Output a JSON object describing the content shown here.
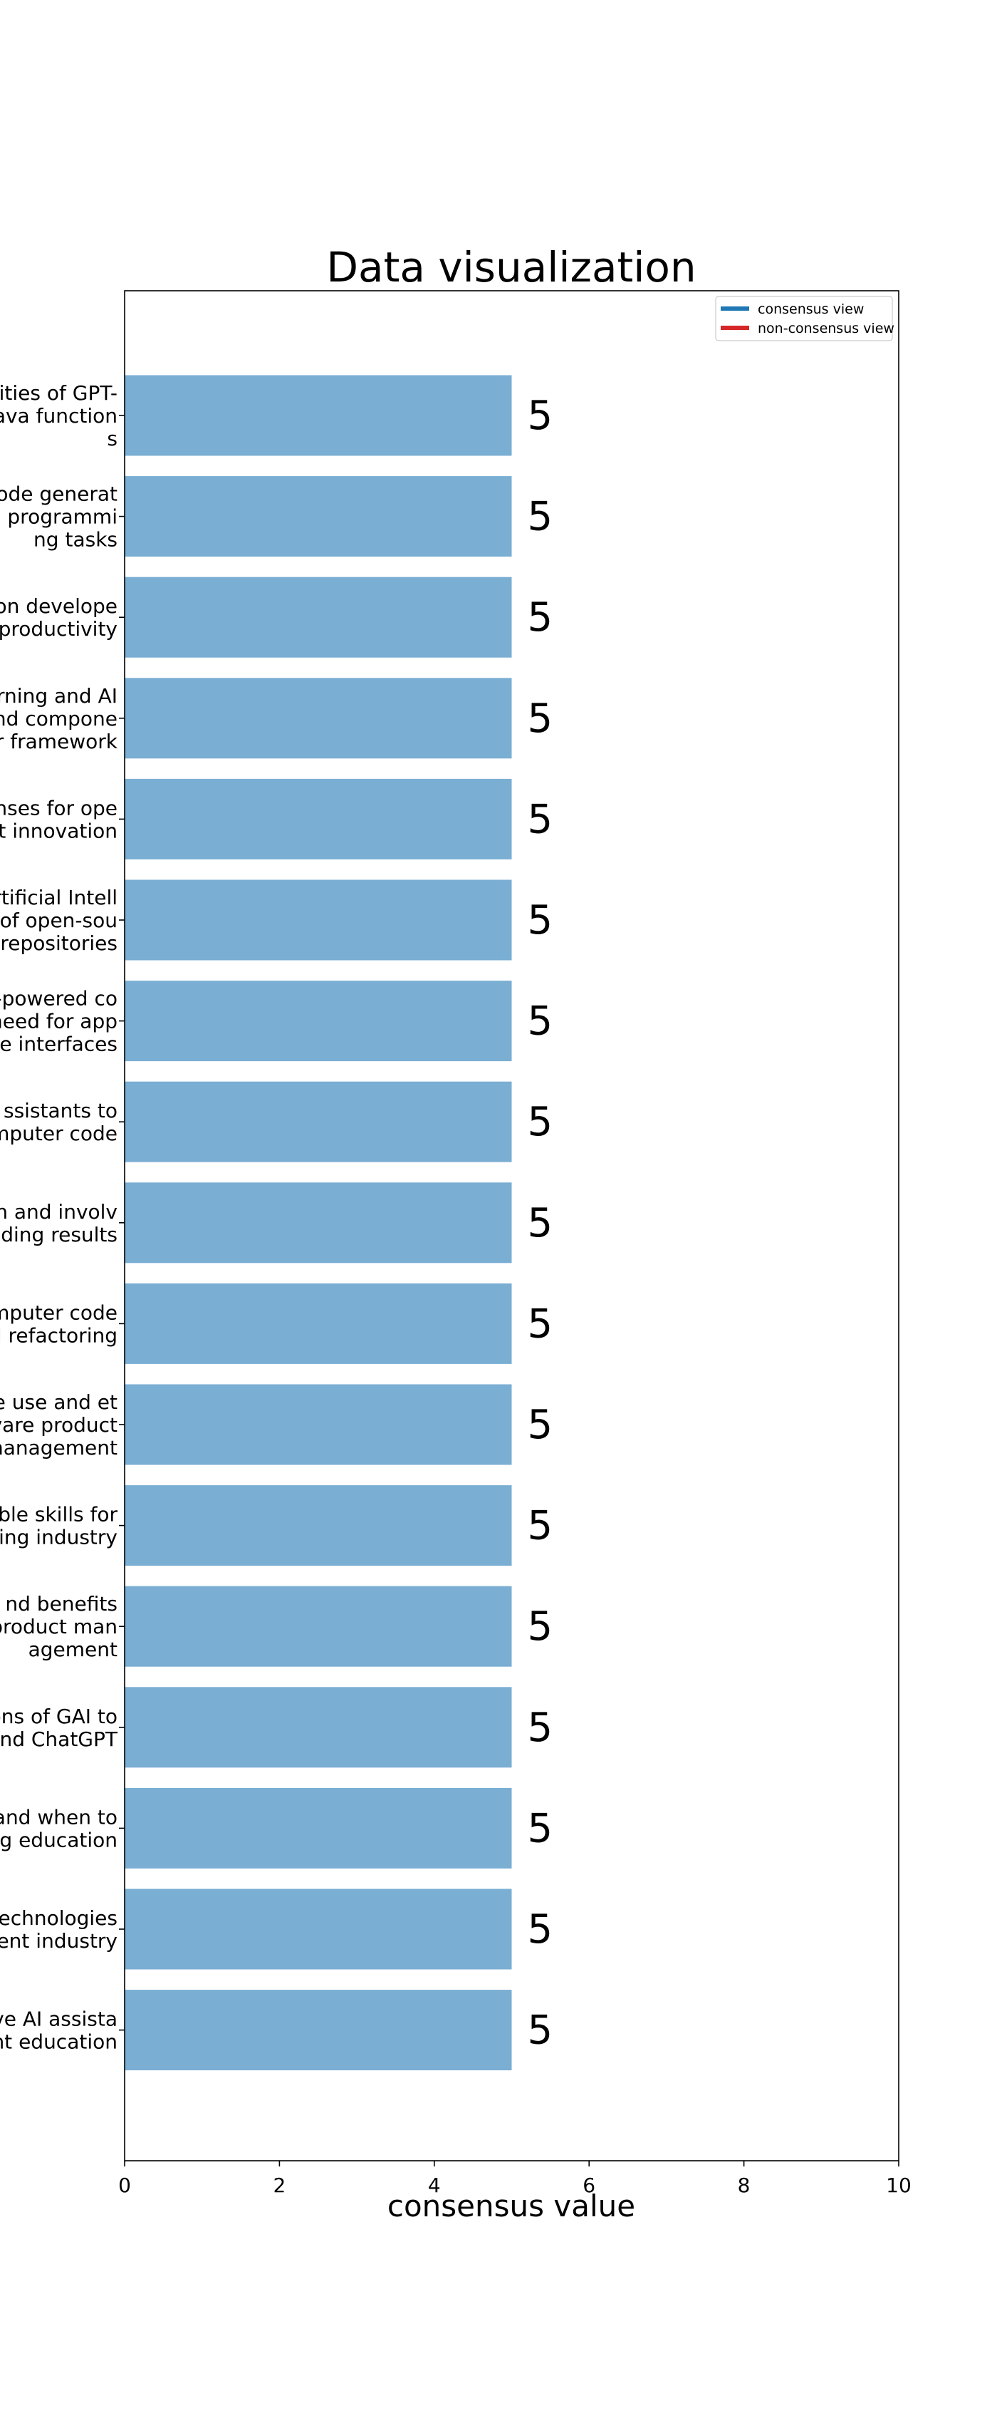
{
  "chart_data": {
    "type": "bar",
    "orientation": "horizontal",
    "title": "Data visualization",
    "xlabel": "consensus value",
    "ylabel": "",
    "xlim": [
      0,
      10
    ],
    "xticks": [
      "0",
      "2",
      "4",
      "6",
      "8",
      "10"
    ],
    "grid": false,
    "bar_color": "#7aaed3",
    "legend": {
      "placement": "top-right",
      "entries": [
        {
          "label": "consensus view",
          "color": "#1f77b4"
        },
        {
          "label": "non-consensus view",
          "color": "#d62728"
        }
      ]
    },
    "categories": [
      {
        "lines": [
          "ities of GPT-",
          "ava function",
          "s"
        ]
      },
      {
        "lines": [
          "ode generat",
          "n programmi",
          "ng tasks"
        ]
      },
      {
        "lines": [
          "on develope",
          "productivity"
        ]
      },
      {
        "lines": [
          "rning and AI",
          "nd compone",
          "r framework"
        ]
      },
      {
        "lines": [
          "nses for ope",
          "t innovation"
        ]
      },
      {
        "lines": [
          "rtificial Intell",
          "of open-sou",
          "repositories"
        ]
      },
      {
        "lines": [
          "-powered co",
          "need for app",
          "e interfaces"
        ]
      },
      {
        "lines": [
          "ssistants to",
          "mputer code"
        ]
      },
      {
        "lines": [
          "n and involv",
          "ding results"
        ]
      },
      {
        "lines": [
          "mputer code",
          "l refactoring"
        ]
      },
      {
        "lines": [
          "e use and et",
          "vare product",
          "nanagement"
        ]
      },
      {
        "lines": [
          "ble skills for",
          "ing industry"
        ]
      },
      {
        "lines": [
          "nd benefits",
          "product man",
          "agement"
        ]
      },
      {
        "lines": [
          "ons of GAI to",
          "nd ChatGPT"
        ]
      },
      {
        "lines": [
          "and when to",
          "g education"
        ]
      },
      {
        "lines": [
          "echnologies",
          "ent industry"
        ]
      },
      {
        "lines": [
          "ve AI assista",
          "nt education"
        ]
      }
    ],
    "values": [
      5,
      5,
      5,
      5,
      5,
      5,
      5,
      5,
      5,
      5,
      5,
      5,
      5,
      5,
      5,
      5,
      5
    ],
    "value_labels": [
      "5",
      "5",
      "5",
      "5",
      "5",
      "5",
      "5",
      "5",
      "5",
      "5",
      "5",
      "5",
      "5",
      "5",
      "5",
      "5",
      "5"
    ]
  }
}
